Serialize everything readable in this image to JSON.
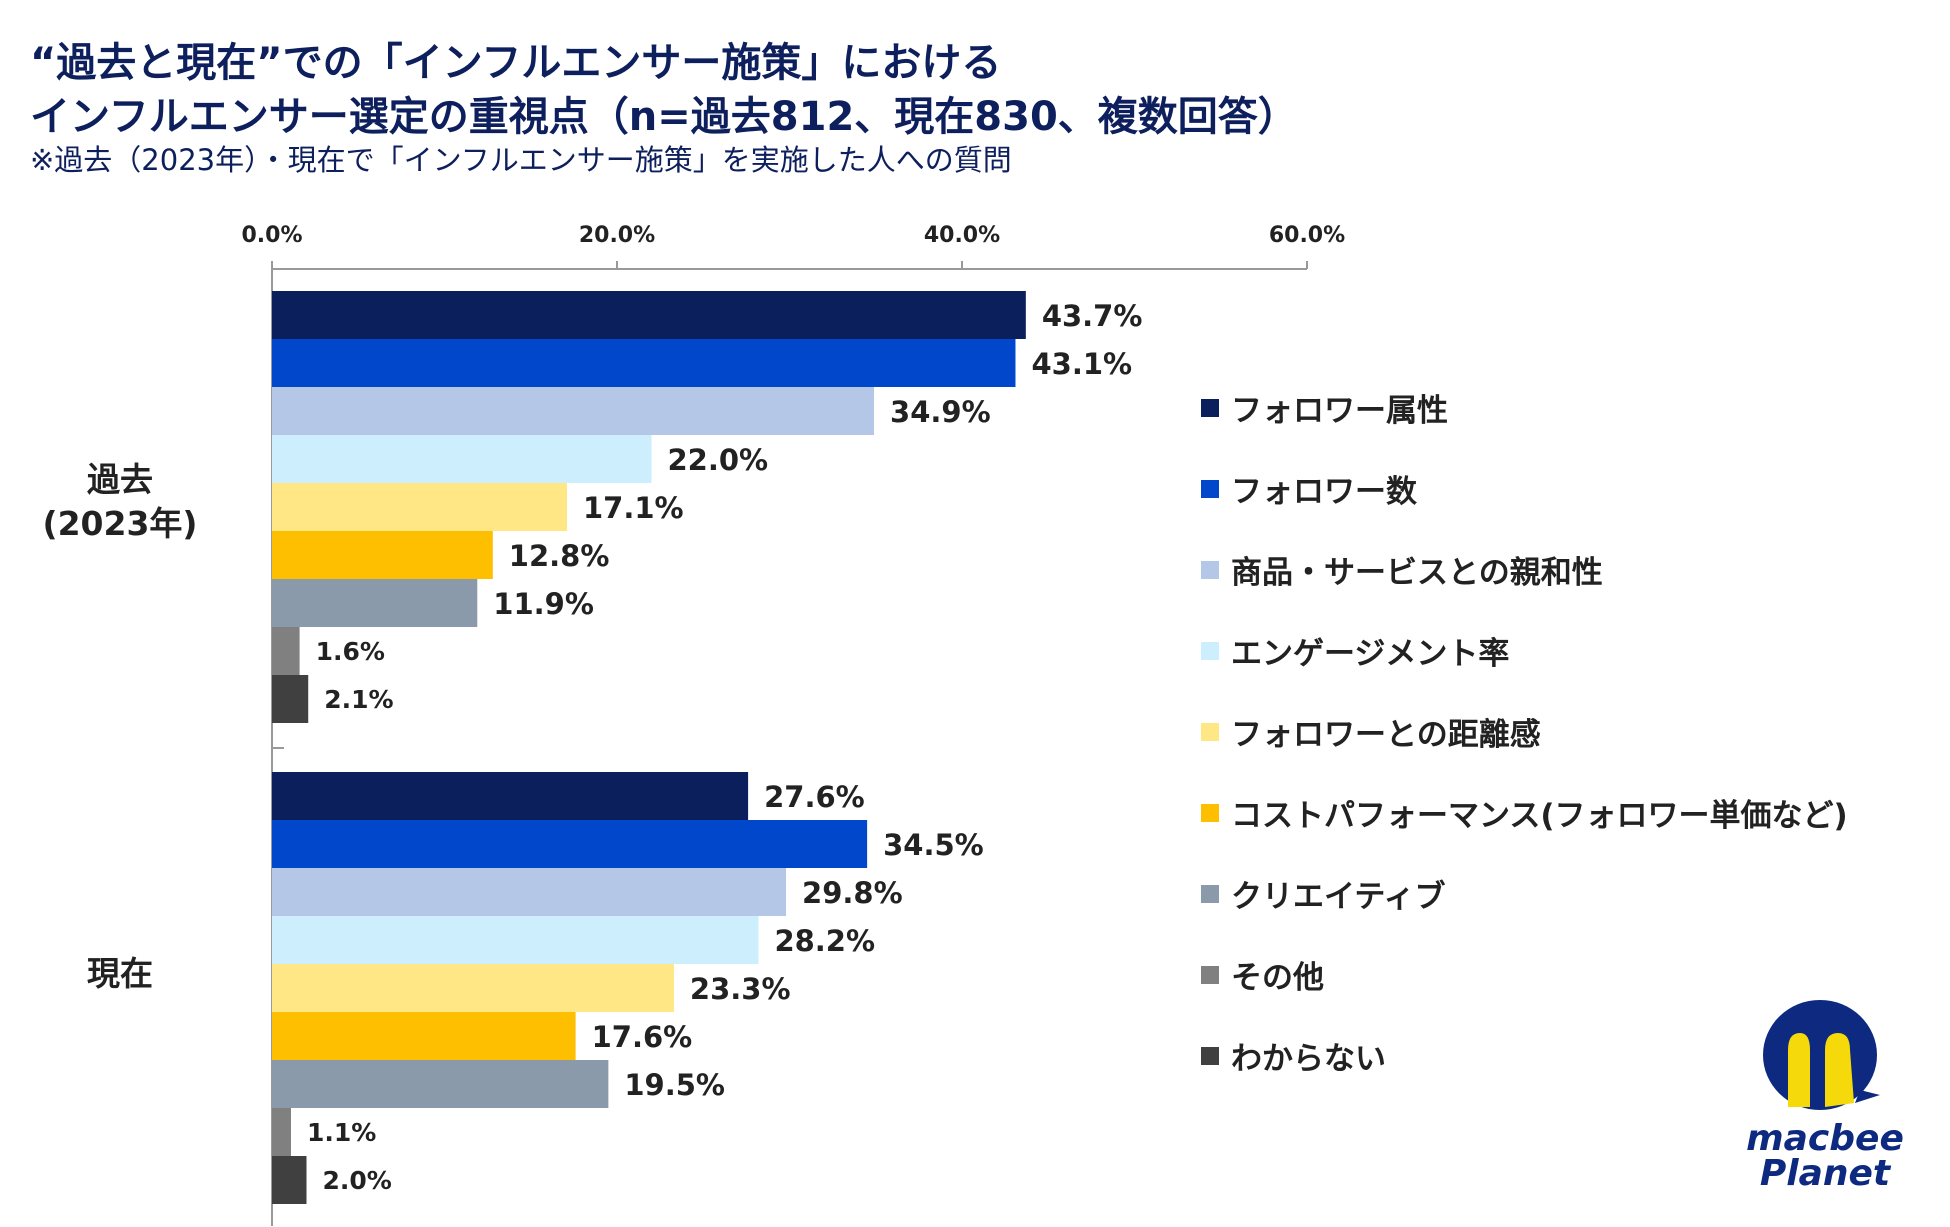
{
  "title_line1": "“過去と現在”での「インフルエンサー施策」における",
  "title_line2": "インフルエンサー選定の重視点（n=過去812、現在830、複数回答）",
  "subtitle": "※過去（2023年）・現在で「インフルエンサー施策」を実施した人への質問",
  "logo_text": "macbee Planet",
  "chart_data": {
    "type": "bar",
    "orientation": "horizontal",
    "categories": [
      "過去\n(2023年)",
      "現在"
    ],
    "category_labels": {
      "past_line1": "過去",
      "past_line2": "(2023年)",
      "now": "現在"
    },
    "xlim": [
      0,
      60
    ],
    "xticks": [
      0,
      20,
      40,
      60
    ],
    "xtick_labels": [
      "0.0%",
      "20.0%",
      "40.0%",
      "60.0%"
    ],
    "grid": false,
    "legend_position": "right",
    "series": [
      {
        "name": "フォロワー属性",
        "color": "#0a1f5c",
        "values": [
          43.7,
          27.6
        ],
        "labels": [
          "43.7%",
          "27.6%"
        ]
      },
      {
        "name": "フォロワー数",
        "color": "#0047cc",
        "values": [
          43.1,
          34.5
        ],
        "labels": [
          "43.1%",
          "34.5%"
        ]
      },
      {
        "name": "商品・サービスとの親和性",
        "color": "#b4c7e7",
        "values": [
          34.9,
          29.8
        ],
        "labels": [
          "34.9%",
          "29.8%"
        ]
      },
      {
        "name": "エンゲージメント率",
        "color": "#cdeefc",
        "values": [
          22.0,
          28.2
        ],
        "labels": [
          "22.0%",
          "28.2%"
        ]
      },
      {
        "name": "フォロワーとの距離感",
        "color": "#fee784",
        "values": [
          17.1,
          23.3
        ],
        "labels": [
          "17.1%",
          "23.3%"
        ]
      },
      {
        "name": "コストパフォーマンス(フォロワー単価など)",
        "color": "#fdbf00",
        "values": [
          12.8,
          17.6
        ],
        "labels": [
          "12.8%",
          "17.6%"
        ]
      },
      {
        "name": "クリエイティブ",
        "color": "#8a9aab",
        "values": [
          11.9,
          19.5
        ],
        "labels": [
          "11.9%",
          "19.5%"
        ]
      },
      {
        "name": "その他",
        "color": "#808080",
        "values": [
          1.6,
          1.1
        ],
        "labels": [
          "1.6%",
          "1.1%"
        ]
      },
      {
        "name": "わからない",
        "color": "#404040",
        "values": [
          2.1,
          2.0
        ],
        "labels": [
          "2.1%",
          "2.0%"
        ]
      }
    ]
  }
}
